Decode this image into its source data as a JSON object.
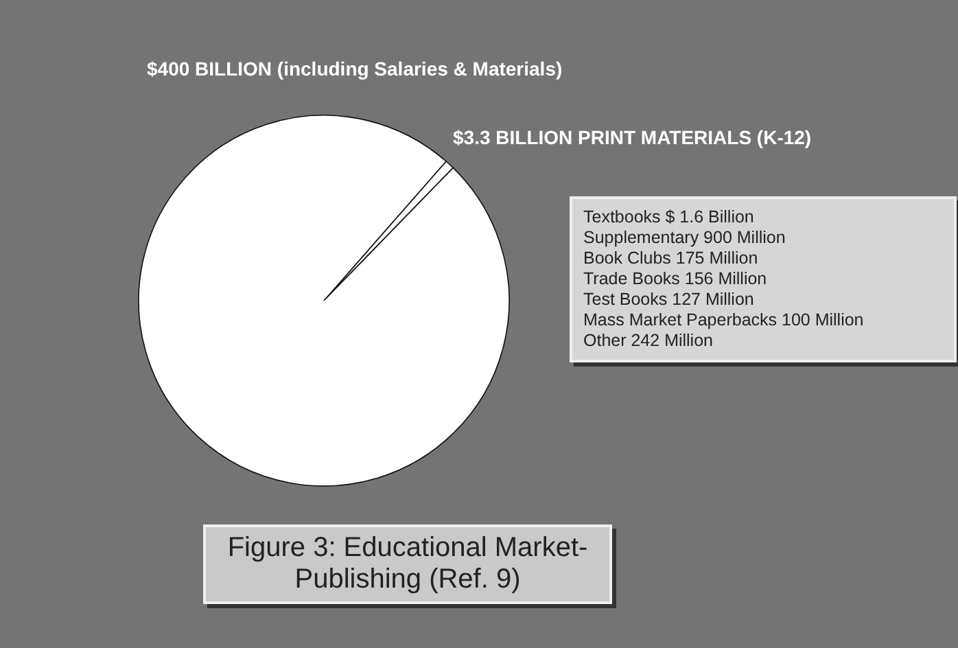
{
  "chart_data": {
    "type": "pie",
    "title": "Figure 3: Educational Market-Publishing (Ref. 9)",
    "categories": [
      "$3.3 BILLION PRINT MATERIALS (K-12)",
      "$400 BILLION (including Salaries & Materials)"
    ],
    "values": [
      3.3,
      400
    ],
    "colors": [
      "#ffffff",
      "#ffffff"
    ],
    "annotations": [
      "Textbooks $ 1.6 Billion",
      "Supplementary 900 Million",
      "Book Clubs 175 Million",
      "Trade Books 156 Million",
      "Test Books 127 Million",
      "Mass Market Paperbacks 100 Million",
      "Other 242 Million"
    ]
  }
}
